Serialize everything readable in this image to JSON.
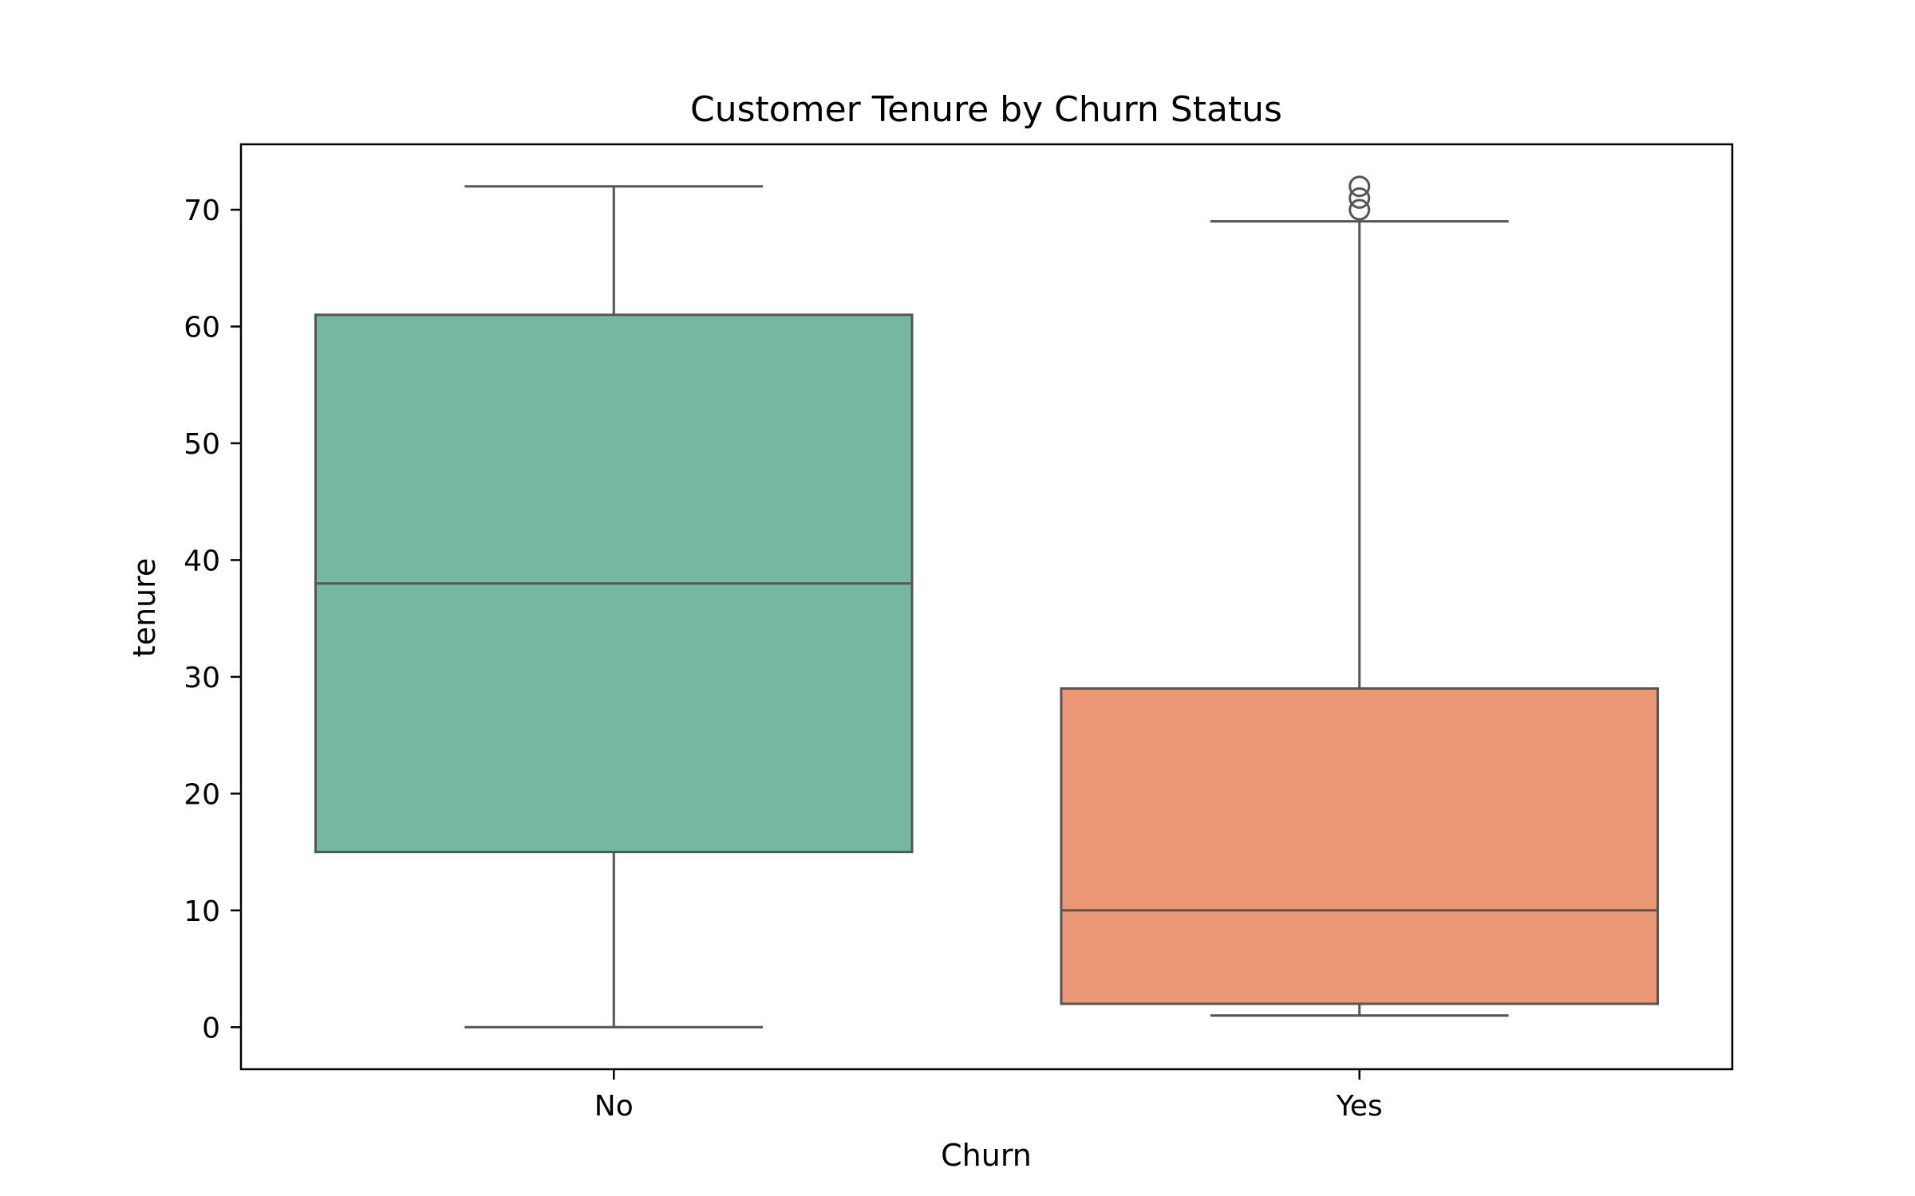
{
  "chart_data": {
    "type": "box",
    "title": "Customer Tenure by Churn Status",
    "xlabel": "Churn",
    "ylabel": "tenure",
    "ylim": [
      -3.6,
      75.6
    ],
    "yticks": [
      "0",
      "10",
      "20",
      "30",
      "40",
      "50",
      "60",
      "70"
    ],
    "categories": [
      "No",
      "Yes"
    ],
    "grid": false,
    "legend": "none",
    "series": [
      {
        "category": "No",
        "whisker_low": 0,
        "q1": 15,
        "median": 38,
        "q3": 61,
        "whisker_high": 72,
        "outliers": [],
        "color": "#76b7a2"
      },
      {
        "category": "Yes",
        "whisker_low": 1,
        "q1": 2,
        "median": 10,
        "q3": 29,
        "whisker_high": 69,
        "outliers": [
          70,
          71,
          72
        ],
        "color": "#e99775"
      }
    ],
    "line_color": "#555555"
  }
}
